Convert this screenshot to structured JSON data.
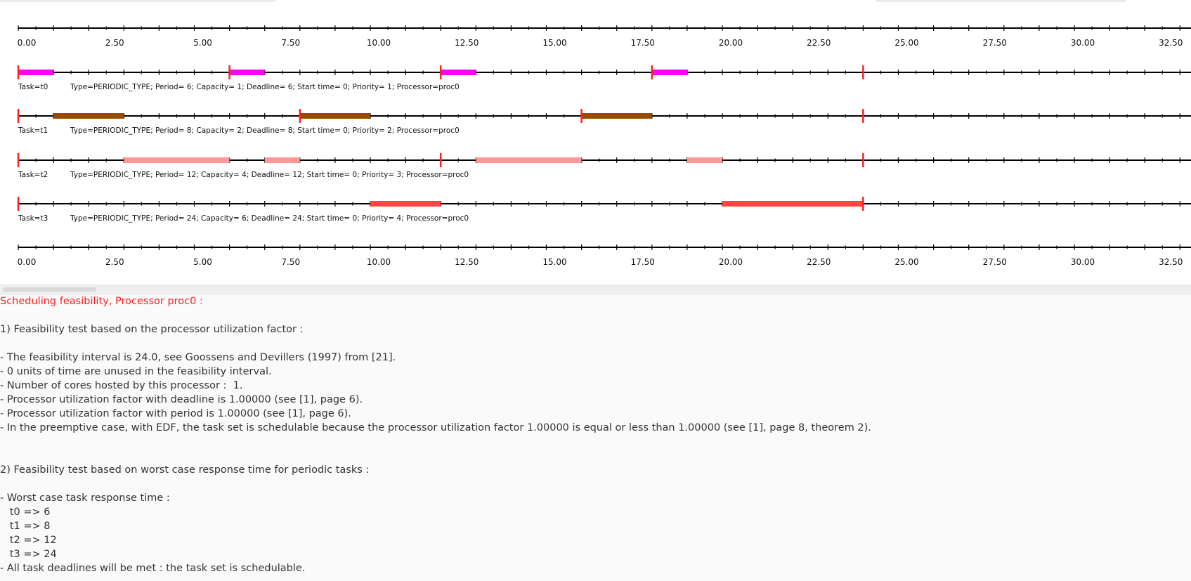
{
  "colors": {
    "axis": "#000000",
    "deadline_marker": "#ff2020",
    "report_heading": "#ff2020",
    "report_text": "#333333"
  },
  "timeline": {
    "tick_labels": [
      "0.00",
      "2.50",
      "5.00",
      "7.50",
      "10.00",
      "12.50",
      "15.00",
      "17.50",
      "20.00",
      "22.50",
      "25.00",
      "27.50",
      "30.00",
      "32.50"
    ],
    "time_units_visible": 33.7,
    "tasks": [
      {
        "name_label": "Task=t0",
        "info": "Type=PERIODIC_TYPE; Period= 6; Capacity= 1; Deadline= 6; Start time= 0; Priority= 1; Processor=proc0",
        "color": "#ff00ff",
        "period": 6,
        "hyperperiod": 24,
        "executions": [
          [
            0,
            1
          ],
          [
            6,
            7
          ],
          [
            12,
            13
          ],
          [
            18,
            19
          ]
        ]
      },
      {
        "name_label": "Task=t1",
        "info": "Type=PERIODIC_TYPE; Period= 8; Capacity= 2; Deadline= 8; Start time= 0; Priority= 2; Processor=proc0",
        "color": "#994c00",
        "period": 8,
        "hyperperiod": 24,
        "executions": [
          [
            1,
            3
          ],
          [
            8,
            10
          ],
          [
            16,
            18
          ]
        ]
      },
      {
        "name_label": "Task=t2",
        "info": "Type=PERIODIC_TYPE; Period= 12; Capacity= 4; Deadline= 12; Start time= 0; Priority= 3; Processor=proc0",
        "color": "#ff9999",
        "period": 12,
        "hyperperiod": 24,
        "executions": [
          [
            3,
            6
          ],
          [
            7,
            8
          ],
          [
            13,
            16
          ],
          [
            19,
            20
          ]
        ]
      },
      {
        "name_label": "Task=t3",
        "info": "Type=PERIODIC_TYPE; Period= 24; Capacity= 6; Deadline= 24; Start time= 0; Priority= 4; Processor=proc0",
        "color": "#ff4444",
        "period": 24,
        "hyperperiod": 24,
        "executions": [
          [
            10,
            12
          ],
          [
            20,
            24
          ]
        ]
      }
    ]
  },
  "report": {
    "heading": "Scheduling feasibility, Processor proc0 :",
    "section1_title": "1) Feasibility test based on the processor utilization factor :",
    "section1_lines": [
      "- The feasibility interval is 24.0, see Goossens and Devillers (1997) from [21].",
      "- 0 units of time are unused in the feasibility interval.",
      "- Number of cores hosted by this processor :  1.",
      "- Processor utilization factor with deadline is 1.00000 (see [1], page 6).",
      "- Processor utilization factor with period is 1.00000 (see [1], page 6).",
      "- In the preemptive case, with EDF, the task set is schedulable because the processor utilization factor 1.00000 is equal or less than 1.00000 (see [1], page 8, theorem 2)."
    ],
    "section2_title": "2) Feasibility test based on worst case response time for periodic tasks :",
    "section2_intro": "- Worst case task response time :",
    "response_times": [
      "   t0 => 6",
      "   t1 => 8",
      "   t2 => 12",
      "   t3 => 24"
    ],
    "conclusion": "- All task deadlines will be met : the task set is schedulable."
  }
}
